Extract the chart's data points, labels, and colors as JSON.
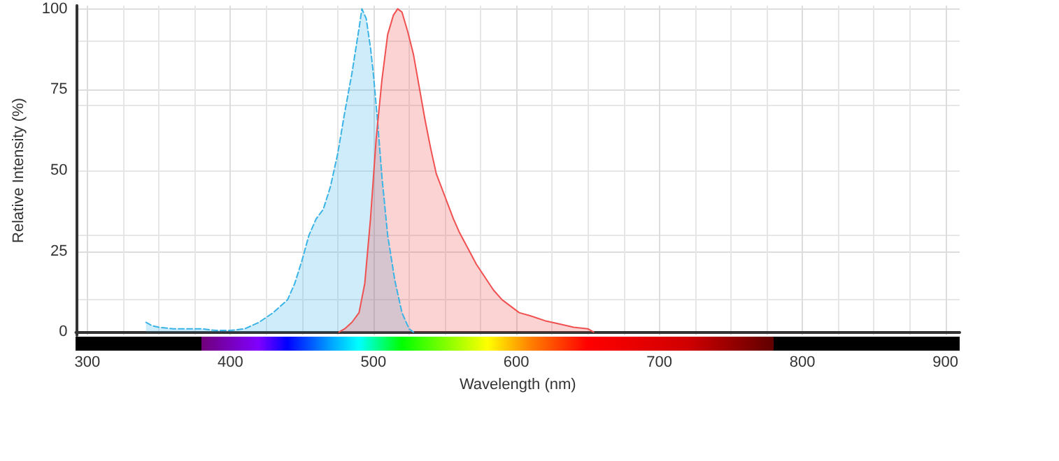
{
  "chart_data": {
    "type": "area",
    "xlabel": "Wavelength (nm)",
    "ylabel": "Relative Intensity (%)",
    "xlim": [
      292,
      910
    ],
    "xticks": [
      300,
      400,
      500,
      600,
      700,
      800,
      900
    ],
    "ylim": [
      -1,
      101
    ],
    "yticks": [
      0,
      25,
      50,
      75,
      100
    ],
    "grid": true,
    "marker": "none",
    "series": [
      {
        "color": "#3ab4e6",
        "line_style": "dashed",
        "x": [
          341,
          345,
          350,
          360,
          370,
          380,
          390,
          400,
          410,
          420,
          430,
          440,
          445,
          450,
          455,
          460,
          465,
          470,
          475,
          480,
          485,
          490,
          492,
          495,
          498,
          500,
          503,
          506,
          510,
          515,
          520,
          525,
          528
        ],
        "values": [
          3,
          2,
          1.5,
          1,
          1,
          1,
          0.5,
          0.5,
          1,
          3,
          6,
          10,
          15,
          22,
          30,
          35,
          38,
          45,
          55,
          68,
          80,
          94,
          100,
          97,
          88,
          80,
          65,
          48,
          30,
          16,
          6,
          1,
          0
        ]
      },
      {
        "color": "#f05050",
        "line_style": "solid",
        "x": [
          476,
          480,
          485,
          490,
          494,
          498,
          502,
          506,
          510,
          514,
          517,
          520,
          524,
          528,
          532,
          536,
          540,
          544,
          550,
          556,
          560,
          566,
          572,
          578,
          584,
          590,
          596,
          602,
          610,
          620,
          630,
          640,
          650,
          654
        ],
        "values": [
          0,
          1,
          3,
          6,
          15,
          35,
          60,
          78,
          92,
          98,
          100,
          99,
          93,
          86,
          76,
          66,
          57,
          49,
          42,
          35,
          31,
          26,
          21,
          17,
          13,
          10,
          8,
          6,
          5,
          3.5,
          2.5,
          1.5,
          1,
          0
        ]
      }
    ]
  }
}
